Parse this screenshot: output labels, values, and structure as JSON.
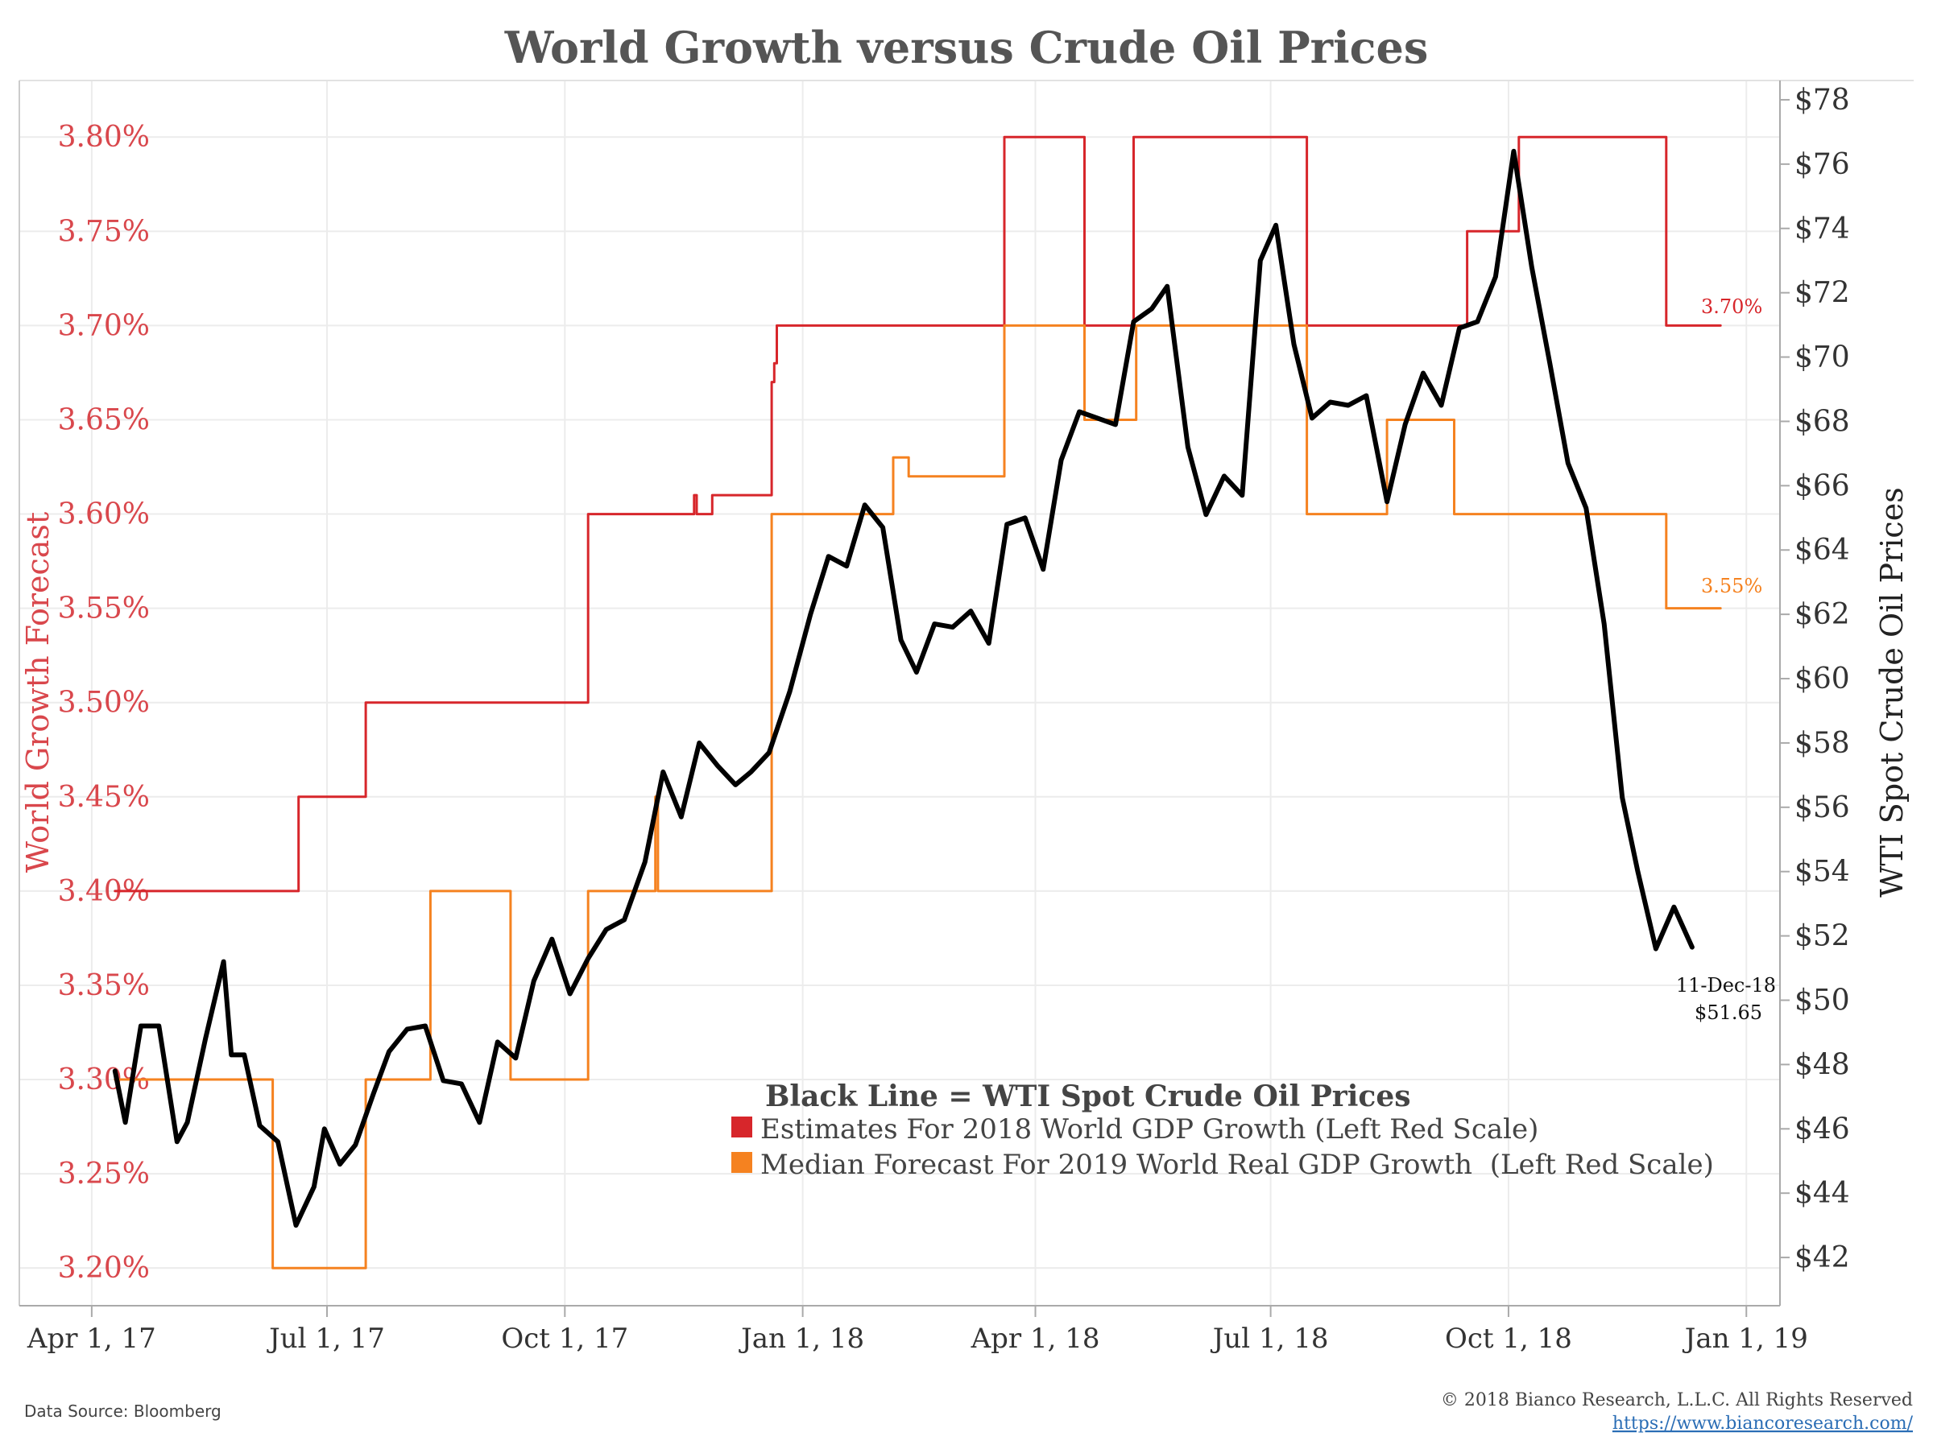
{
  "chart_data": {
    "type": "line",
    "title": "World Growth versus Crude Oil Prices",
    "ylabel_left": "World Growth Forecast",
    "ylabel_right": "WTI Spot Crude Oil Prices",
    "x_ticks": [
      "2017-04-01",
      "2017-07-01",
      "2017-10-01",
      "2018-01-01",
      "2018-04-01",
      "2018-07-01",
      "2018-10-01",
      "2019-01-01"
    ],
    "x_tick_labels": [
      "Apr 1, 17",
      "Jul 1, 17",
      "Oct 1, 17",
      "Jan 1, 18",
      "Apr 1, 18",
      "Jul 1, 18",
      "Oct 1, 18",
      "Jan 1, 19"
    ],
    "xlim": [
      "2017-03-04",
      "2019-01-14"
    ],
    "ylim_left": [
      3.18,
      3.83
    ],
    "ylim_right": [
      40.5,
      78.6
    ],
    "left_ticks": [
      3.2,
      3.25,
      3.3,
      3.35,
      3.4,
      3.45,
      3.5,
      3.55,
      3.6,
      3.65,
      3.7,
      3.75,
      3.8
    ],
    "left_tick_labels": [
      "3.20%",
      "3.25%",
      "3.30%",
      "3.35%",
      "3.40%",
      "3.45%",
      "3.50%",
      "3.55%",
      "3.60%",
      "3.65%",
      "3.70%",
      "3.75%",
      "3.80%"
    ],
    "right_ticks": [
      42,
      44,
      46,
      48,
      50,
      52,
      54,
      56,
      58,
      60,
      62,
      64,
      66,
      68,
      70,
      72,
      74,
      76,
      78
    ],
    "right_tick_labels": [
      "$42",
      "$44",
      "$46",
      "$48",
      "$50",
      "$52",
      "$54",
      "$56",
      "$58",
      "$60",
      "$62",
      "$64",
      "$66",
      "$68",
      "$70",
      "$72",
      "$74",
      "$76",
      "$78"
    ],
    "grid": true,
    "series": [
      {
        "name": "Estimates For 2018 World GDP Growth (Left Red Scale)",
        "axis": "left",
        "style": "step",
        "color": "#d7262b",
        "x": [
          "2017-04-10",
          "2017-06-20",
          "2017-07-16",
          "2017-10-10",
          "2017-11-20",
          "2017-11-21",
          "2017-11-22",
          "2017-11-27",
          "2017-12-20",
          "2017-12-21",
          "2017-12-22",
          "2018-03-20",
          "2018-04-20",
          "2018-05-09",
          "2018-07-15",
          "2018-09-15",
          "2018-10-05",
          "2018-12-01",
          "2018-12-22"
        ],
        "values": [
          3.4,
          3.45,
          3.5,
          3.6,
          3.61,
          3.6,
          3.6,
          3.61,
          3.67,
          3.68,
          3.7,
          3.8,
          3.7,
          3.8,
          3.7,
          3.75,
          3.8,
          3.7,
          3.7
        ]
      },
      {
        "name": "Median Forecast For 2019 World Real GDP Growth  (Left Red Scale)",
        "axis": "left",
        "style": "step",
        "color": "#f58220",
        "x": [
          "2017-04-10",
          "2017-06-10",
          "2017-07-16",
          "2017-08-10",
          "2017-09-10",
          "2017-10-10",
          "2017-11-05",
          "2017-11-06",
          "2017-12-20",
          "2018-02-05",
          "2018-02-11",
          "2018-03-20",
          "2018-04-20",
          "2018-05-10",
          "2018-07-15",
          "2018-08-15",
          "2018-09-10",
          "2018-12-01",
          "2018-12-22"
        ],
        "values": [
          3.3,
          3.2,
          3.3,
          3.4,
          3.3,
          3.4,
          3.45,
          3.4,
          3.6,
          3.63,
          3.62,
          3.7,
          3.65,
          3.7,
          3.6,
          3.65,
          3.6,
          3.55,
          3.55
        ]
      },
      {
        "name": "Black Line = WTI Spot Crude Oil Prices",
        "axis": "right",
        "style": "line",
        "color": "#000000",
        "x": [
          "2017-04-10",
          "2017-04-14",
          "2017-04-20",
          "2017-04-27",
          "2017-05-04",
          "2017-05-08",
          "2017-05-15",
          "2017-05-22",
          "2017-05-25",
          "2017-05-30",
          "2017-06-05",
          "2017-06-12",
          "2017-06-19",
          "2017-06-26",
          "2017-06-30",
          "2017-07-06",
          "2017-07-12",
          "2017-07-19",
          "2017-07-25",
          "2017-08-01",
          "2017-08-08",
          "2017-08-15",
          "2017-08-22",
          "2017-08-29",
          "2017-09-05",
          "2017-09-12",
          "2017-09-19",
          "2017-09-26",
          "2017-10-03",
          "2017-10-10",
          "2017-10-17",
          "2017-10-24",
          "2017-11-01",
          "2017-11-08",
          "2017-11-15",
          "2017-11-22",
          "2017-11-29",
          "2017-12-06",
          "2017-12-12",
          "2017-12-19",
          "2017-12-27",
          "2018-01-04",
          "2018-01-11",
          "2018-01-18",
          "2018-01-25",
          "2018-02-01",
          "2018-02-08",
          "2018-02-14",
          "2018-02-21",
          "2018-02-28",
          "2018-03-07",
          "2018-03-14",
          "2018-03-21",
          "2018-03-28",
          "2018-04-04",
          "2018-04-11",
          "2018-04-18",
          "2018-04-25",
          "2018-05-02",
          "2018-05-09",
          "2018-05-16",
          "2018-05-22",
          "2018-05-30",
          "2018-06-06",
          "2018-06-13",
          "2018-06-20",
          "2018-06-27",
          "2018-07-03",
          "2018-07-10",
          "2018-07-17",
          "2018-07-24",
          "2018-07-31",
          "2018-08-07",
          "2018-08-15",
          "2018-08-22",
          "2018-08-29",
          "2018-09-05",
          "2018-09-12",
          "2018-09-19",
          "2018-09-26",
          "2018-10-03",
          "2018-10-10",
          "2018-10-17",
          "2018-10-24",
          "2018-10-31",
          "2018-11-07",
          "2018-11-14",
          "2018-11-20",
          "2018-11-27",
          "2018-12-04",
          "2018-12-11"
        ],
        "values": [
          47.8,
          46.2,
          49.2,
          49.2,
          45.6,
          46.2,
          48.8,
          51.2,
          48.3,
          48.3,
          46.1,
          45.6,
          43.0,
          44.2,
          46.0,
          44.9,
          45.5,
          47.1,
          48.4,
          49.1,
          49.2,
          47.5,
          47.4,
          46.2,
          48.7,
          48.2,
          50.6,
          51.9,
          50.2,
          51.3,
          52.2,
          52.5,
          54.3,
          57.1,
          55.7,
          58.0,
          57.3,
          56.7,
          57.1,
          57.7,
          59.6,
          62.0,
          63.8,
          63.5,
          65.4,
          64.7,
          61.2,
          60.2,
          61.7,
          61.6,
          62.1,
          61.1,
          64.8,
          65.0,
          63.4,
          66.8,
          68.3,
          68.1,
          67.9,
          71.1,
          71.5,
          72.2,
          67.2,
          65.1,
          66.3,
          65.7,
          73.0,
          74.1,
          70.4,
          68.1,
          68.6,
          68.5,
          68.8,
          65.5,
          67.9,
          69.5,
          68.5,
          70.9,
          71.1,
          72.5,
          76.4,
          72.8,
          69.8,
          66.7,
          65.3,
          61.7,
          56.3,
          54.0,
          51.6,
          52.9,
          51.65
        ]
      }
    ],
    "annotations": {
      "red_end_label": "3.70%",
      "orange_end_label": "3.55%",
      "date_label": "11-Dec-18",
      "price_label": "$51.65"
    },
    "legend": {
      "placement": "center-bottom",
      "header": "Black Line = WTI Spot Crude Oil Prices",
      "items": [
        {
          "label": "Estimates For 2018 World GDP Growth (Left Red Scale)",
          "color": "#d7262b"
        },
        {
          "label": "Median Forecast For 2019 World Real GDP Growth  (Left Red Scale)",
          "color": "#f58220"
        }
      ]
    }
  },
  "footer": {
    "source": "Data Source: Bloomberg",
    "copyright": "© 2018 Bianco Research, L.L.C. All Rights Reserved",
    "url": "https://www.biancoresearch.com/"
  }
}
